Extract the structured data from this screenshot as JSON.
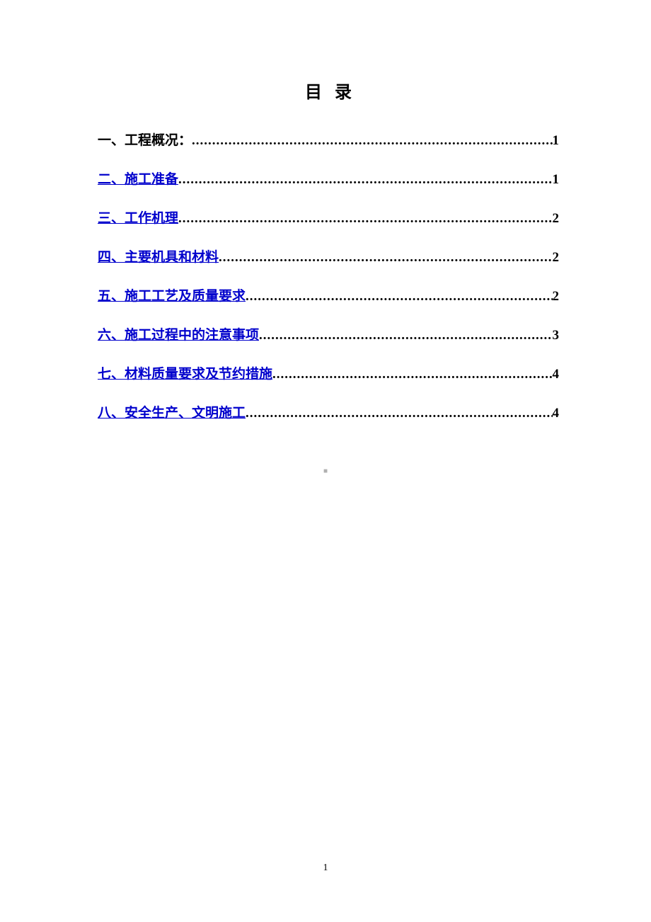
{
  "title": "目录",
  "entries": [
    {
      "label": "一、工程概况：",
      "page": "1",
      "is_link": false
    },
    {
      "label": "二、施工准备",
      "page": "1",
      "is_link": true
    },
    {
      "label": "三、工作机理",
      "page": "2",
      "is_link": true
    },
    {
      "label": "四、主要机具和材料",
      "page": "2",
      "is_link": true
    },
    {
      "label": "五、施工工艺及质量要求",
      "page": "2",
      "is_link": true
    },
    {
      "label": "六、施工过程中的注意事项",
      "page": "3",
      "is_link": true
    },
    {
      "label": "七、材料质量要求及节约措施",
      "page": "4",
      "is_link": true
    },
    {
      "label": "八、安全生产、文明施工",
      "page": "4",
      "is_link": true
    }
  ],
  "page_number": "1",
  "colors": {
    "background": "#ffffff",
    "text": "#000000",
    "link": "#0000cc",
    "watermark": "#b0b0b0"
  },
  "typography": {
    "title_fontsize": 24,
    "entry_fontsize": 19,
    "pagenum_fontsize": 14,
    "font_family": "SimSun"
  }
}
